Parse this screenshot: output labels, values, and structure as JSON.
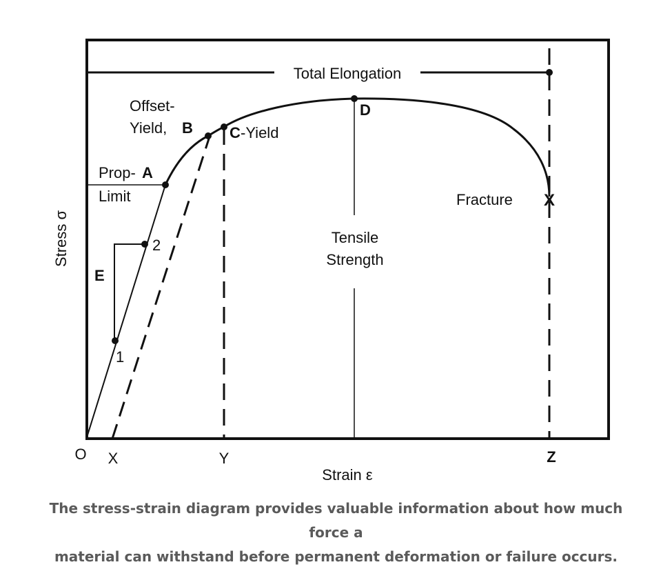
{
  "diagram": {
    "labels": {
      "total_elongation": "Total Elongation",
      "offset_line1": "Offset-",
      "offset_line2": "Yield,",
      "offset_letter": "B",
      "yield_letter": "C",
      "yield_text": "-Yield",
      "prop_line1": "Prop-",
      "prop_letter": "A",
      "prop_line2": "Limit",
      "point_d": "D",
      "fracture": "Fracture",
      "fracture_mark": "X",
      "tensile_line1": "Tensile",
      "tensile_line2": "Strength",
      "point_2": "2",
      "point_1": "1",
      "modulus": "E",
      "stress_axis": "Stress σ",
      "strain_axis": "Strain ε",
      "origin": "O",
      "x_tick": "X",
      "y_tick": "Y",
      "z_tick": "Z"
    },
    "colors": {
      "line": "#111111",
      "caption": "#5a5a5a"
    }
  },
  "caption": {
    "line1": "The stress-strain diagram provides valuable information about how much force a",
    "line2": "material can withstand before permanent deformation or failure occurs."
  }
}
